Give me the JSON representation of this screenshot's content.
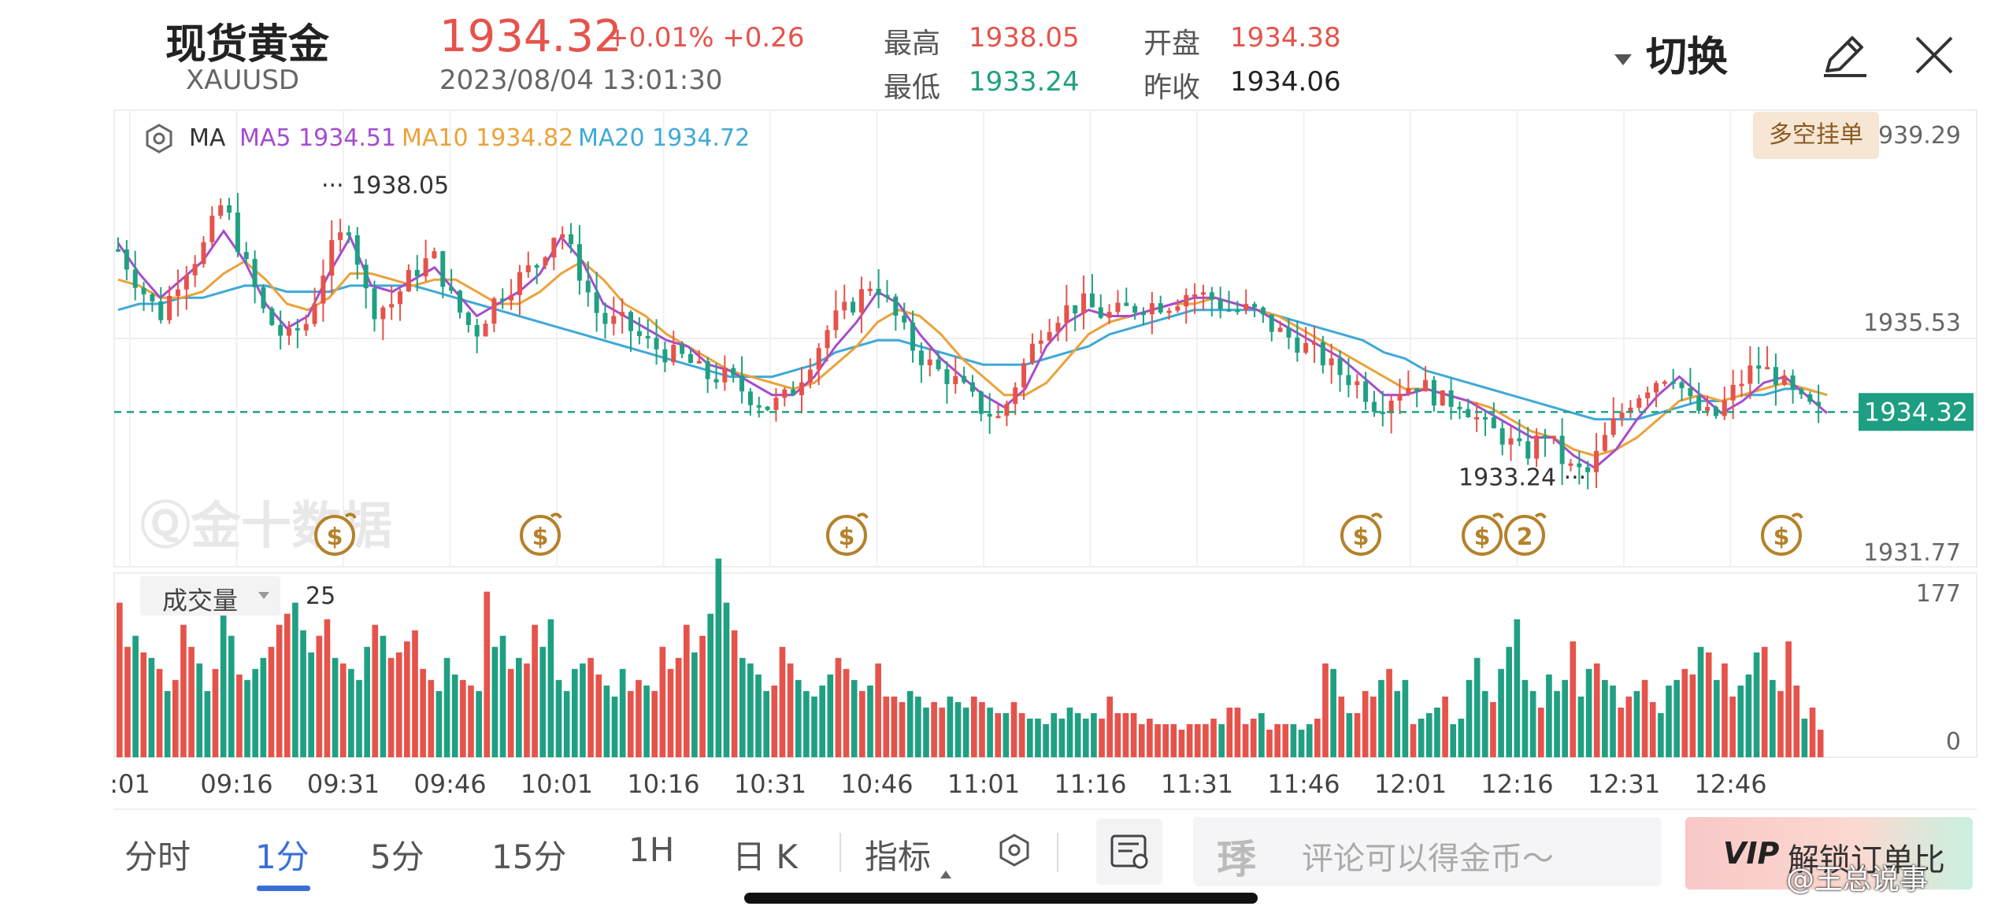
{
  "header": {
    "name": "现货黄金",
    "code": "XAUUSD",
    "price": "1934.32",
    "change": "+0.01% +0.26",
    "datetime": "2023/08/04 13:01:30",
    "stats": [
      {
        "label": "最高",
        "value": "1938.05",
        "color": "#e5534b"
      },
      {
        "label": "开盘",
        "value": "1934.38",
        "color": "#e5534b"
      },
      {
        "label": "最低",
        "value": "1933.24",
        "color": "#20a083"
      },
      {
        "label": "昨收",
        "value": "1934.06",
        "color": "#222222"
      }
    ],
    "switch_label": "切换",
    "edit_icon": "pencil-icon",
    "close_icon": "close-icon"
  },
  "chart_data": {
    "type": "candlestick",
    "indicator_label": "MA",
    "ma": [
      {
        "name": "MA5",
        "value": "1934.51",
        "color": "#a64ccf"
      },
      {
        "name": "MA10",
        "value": "1934.82",
        "color": "#eba23a"
      },
      {
        "name": "MA20",
        "value": "1934.72",
        "color": "#3fa9d8"
      }
    ],
    "y_ticks": [
      "1939.29",
      "1935.53",
      "1931.77"
    ],
    "ylim": [
      1931.77,
      1939.29
    ],
    "current_price": 1934.32,
    "current_price_label": "1934.32",
    "high": {
      "value": 1938.05,
      "label": "1938.05"
    },
    "low": {
      "value": 1933.24,
      "label": "1933.24"
    },
    "x_ticks": [
      ":01",
      "09:16",
      "09:31",
      "09:46",
      "10:01",
      "10:16",
      "10:31",
      "10:46",
      "11:01",
      "11:16",
      "11:31",
      "11:46",
      "12:01",
      "12:16",
      "12:31",
      "12:46"
    ],
    "path_ma5": [
      1937.1,
      1936.6,
      1936.2,
      1936.5,
      1936.8,
      1937.3,
      1936.8,
      1936.1,
      1935.7,
      1935.9,
      1936.6,
      1937.2,
      1936.4,
      1936.3,
      1936.5,
      1936.7,
      1936.3,
      1935.9,
      1936.1,
      1936.3,
      1936.6,
      1937.2,
      1936.8,
      1936.1,
      1935.9,
      1935.7,
      1935.5,
      1935.4,
      1935.1,
      1935.0,
      1934.8,
      1934.6,
      1934.6,
      1934.9,
      1935.4,
      1935.8,
      1936.3,
      1936.1,
      1935.6,
      1935.2,
      1934.9,
      1934.6,
      1934.4,
      1934.7,
      1935.4,
      1935.8,
      1936.0,
      1935.9,
      1935.9,
      1936.0,
      1936.1,
      1936.2,
      1936.2,
      1936.1,
      1936.0,
      1935.8,
      1935.6,
      1935.4,
      1935.2,
      1934.9,
      1934.6,
      1934.6,
      1934.7,
      1934.6,
      1934.5,
      1934.3,
      1934.1,
      1933.9,
      1933.9,
      1933.6,
      1933.4,
      1933.7,
      1934.2,
      1934.6,
      1934.9,
      1934.6,
      1934.3,
      1934.5,
      1934.8,
      1934.9,
      1934.6,
      1934.3
    ],
    "path_ma10": [
      1936.5,
      1936.4,
      1936.2,
      1936.2,
      1936.3,
      1936.6,
      1936.8,
      1936.5,
      1936.1,
      1936.0,
      1936.2,
      1936.6,
      1936.6,
      1936.5,
      1936.4,
      1936.5,
      1936.5,
      1936.3,
      1936.1,
      1936.1,
      1936.3,
      1936.6,
      1936.8,
      1936.5,
      1936.1,
      1935.9,
      1935.6,
      1935.4,
      1935.2,
      1935.0,
      1934.9,
      1934.8,
      1934.7,
      1934.8,
      1935.1,
      1935.4,
      1935.8,
      1936.0,
      1935.9,
      1935.6,
      1935.2,
      1934.9,
      1934.6,
      1934.6,
      1934.8,
      1935.2,
      1935.6,
      1935.8,
      1935.9,
      1936.0,
      1936.1,
      1936.1,
      1936.2,
      1936.1,
      1936.0,
      1935.9,
      1935.7,
      1935.5,
      1935.3,
      1935.1,
      1934.9,
      1934.7,
      1934.7,
      1934.6,
      1934.5,
      1934.4,
      1934.2,
      1934.0,
      1933.9,
      1933.7,
      1933.6,
      1933.7,
      1933.9,
      1934.2,
      1934.5,
      1934.6,
      1934.5,
      1934.6,
      1934.7,
      1934.8,
      1934.7,
      1934.6
    ],
    "path_ma20": [
      1936.0,
      1936.1,
      1936.1,
      1936.2,
      1936.2,
      1936.3,
      1936.4,
      1936.4,
      1936.3,
      1936.3,
      1936.3,
      1936.4,
      1936.4,
      1936.4,
      1936.4,
      1936.3,
      1936.2,
      1936.1,
      1936.0,
      1935.9,
      1935.8,
      1935.7,
      1935.6,
      1935.5,
      1935.4,
      1935.3,
      1935.2,
      1935.1,
      1935.0,
      1934.9,
      1934.9,
      1934.9,
      1935.0,
      1935.1,
      1935.3,
      1935.4,
      1935.5,
      1935.5,
      1935.4,
      1935.3,
      1935.2,
      1935.1,
      1935.1,
      1935.1,
      1935.2,
      1935.3,
      1935.4,
      1935.6,
      1935.7,
      1935.8,
      1935.9,
      1936.0,
      1936.0,
      1936.0,
      1936.0,
      1935.9,
      1935.8,
      1935.7,
      1935.6,
      1935.5,
      1935.3,
      1935.2,
      1935.0,
      1934.9,
      1934.8,
      1934.7,
      1934.6,
      1934.5,
      1934.4,
      1934.3,
      1934.2,
      1934.2,
      1934.2,
      1934.3,
      1934.4,
      1934.5,
      1934.5,
      1934.6,
      1934.6,
      1934.7,
      1934.7,
      1934.6
    ],
    "price_path": [
      1937.0,
      1936.4,
      1935.9,
      1936.6,
      1937.0,
      1937.8,
      1936.8,
      1935.9,
      1935.5,
      1935.8,
      1936.9,
      1937.4,
      1936.0,
      1936.1,
      1936.6,
      1936.9,
      1936.1,
      1935.6,
      1936.2,
      1936.5,
      1936.8,
      1937.4,
      1936.6,
      1935.8,
      1935.8,
      1935.5,
      1935.3,
      1935.2,
      1934.9,
      1934.9,
      1934.6,
      1934.4,
      1934.6,
      1935.2,
      1935.8,
      1936.1,
      1936.5,
      1935.9,
      1935.3,
      1935.0,
      1934.8,
      1934.4,
      1934.2,
      1935.0,
      1935.7,
      1936.0,
      1936.1,
      1935.9,
      1936.0,
      1936.1,
      1936.1,
      1936.3,
      1936.2,
      1936.0,
      1936.0,
      1935.7,
      1935.5,
      1935.3,
      1935.0,
      1934.8,
      1934.4,
      1934.7,
      1934.8,
      1934.5,
      1934.5,
      1934.1,
      1933.9,
      1933.6,
      1934.0,
      1933.4,
      1933.3,
      1934.0,
      1934.5,
      1934.8,
      1935.0,
      1934.4,
      1934.2,
      1934.7,
      1935.1,
      1934.9,
      1934.5,
      1934.3
    ],
    "volume": {
      "label": "成交量",
      "period": "25",
      "y_ticks": [
        "177",
        "0"
      ],
      "ylim": [
        0,
        177
      ],
      "values": [
        140,
        100,
        110,
        95,
        90,
        80,
        60,
        70,
        120,
        100,
        85,
        60,
        80,
        130,
        110,
        75,
        70,
        80,
        90,
        100,
        120,
        130,
        140,
        115,
        95,
        110,
        125,
        90,
        85,
        80,
        70,
        100,
        120,
        110,
        90,
        95,
        105,
        115,
        80,
        70,
        60,
        90,
        75,
        70,
        65,
        60,
        150,
        100,
        110,
        80,
        90,
        85,
        120,
        100,
        125,
        70,
        60,
        80,
        85,
        90,
        75,
        65,
        55,
        80,
        60,
        70,
        65,
        60,
        100,
        80,
        90,
        120,
        95,
        110,
        130,
        180,
        140,
        115,
        90,
        85,
        75,
        60,
        65,
        100,
        85,
        70,
        60,
        55,
        65,
        75,
        90,
        80,
        70,
        60,
        65,
        85,
        55,
        55,
        50,
        60,
        55,
        45,
        50,
        45,
        55,
        50,
        45,
        55,
        50,
        45,
        40,
        40,
        50,
        40,
        35,
        35,
        30,
        40,
        35,
        45,
        40,
        35,
        40,
        35,
        55,
        40,
        40,
        40,
        30,
        35,
        30,
        30,
        30,
        25,
        30,
        30,
        30,
        35,
        30,
        45,
        45,
        30,
        35,
        40,
        25,
        30,
        30,
        30,
        25,
        30,
        35,
        85,
        80,
        55,
        40,
        40,
        60,
        55,
        70,
        80,
        60,
        70,
        30,
        35,
        40,
        45,
        55,
        30,
        35,
        70,
        90,
        60,
        50,
        80,
        100,
        125,
        70,
        60,
        45,
        75,
        60,
        70,
        105,
        55,
        80,
        85,
        70,
        65,
        45,
        55,
        60,
        70,
        50,
        40,
        65,
        70,
        80,
        75,
        100,
        95,
        70,
        85,
        55,
        65,
        75,
        95,
        100,
        70,
        60,
        105,
        65,
        35,
        45,
        25
      ],
      "up": "#20a083",
      "down": "#e5534b"
    },
    "markers": [
      {
        "symbol": "$"
      },
      {
        "symbol": "$"
      },
      {
        "symbol": "$"
      },
      {
        "symbol": "$"
      },
      {
        "symbol": "$"
      },
      {
        "symbol": "2"
      },
      {
        "symbol": "$"
      }
    ]
  },
  "overlay": {
    "order_button": "多空挂单",
    "watermark": "金十数据"
  },
  "bottom": {
    "tabs": [
      "分时",
      "1分",
      "5分",
      "15分",
      "1H",
      "日 K"
    ],
    "indicator_label": "指标",
    "comment_placeholder": "评论可以得金币～",
    "vip_label": "解锁订单比",
    "vip_badge": "VIP",
    "credit": "@王总说事"
  }
}
